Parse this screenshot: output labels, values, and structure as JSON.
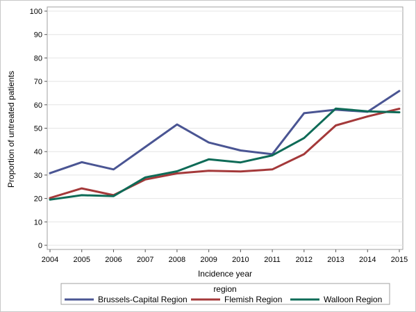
{
  "chart_data": {
    "type": "line",
    "x": [
      2004,
      2005,
      2006,
      2007,
      2008,
      2009,
      2010,
      2011,
      2012,
      2013,
      2014,
      2015
    ],
    "xlabel": "Incidence year",
    "ylabel": "Proportion of untreated patients",
    "ylim": [
      0,
      100
    ],
    "yticks": [
      0,
      10,
      20,
      30,
      40,
      50,
      60,
      70,
      80,
      90,
      100
    ],
    "grid": true,
    "legend": {
      "title": "region",
      "position": "bottom"
    },
    "series": [
      {
        "name": "Brussels-Capital Region",
        "color": "#4a5593",
        "values": [
          30.8,
          35.5,
          32.4,
          42.0,
          51.6,
          43.9,
          40.5,
          38.9,
          56.4,
          57.9,
          57.0,
          65.9
        ]
      },
      {
        "name": "Flemish Region",
        "color": "#a4393a",
        "values": [
          20.2,
          24.3,
          21.4,
          28.1,
          30.7,
          31.8,
          31.5,
          32.4,
          38.9,
          51.2,
          55.0,
          58.3
        ]
      },
      {
        "name": "Walloon Region",
        "color": "#0e6b57",
        "values": [
          19.5,
          21.4,
          21.0,
          29.0,
          31.6,
          36.7,
          35.4,
          38.4,
          45.8,
          58.4,
          57.2,
          56.8
        ]
      }
    ]
  }
}
